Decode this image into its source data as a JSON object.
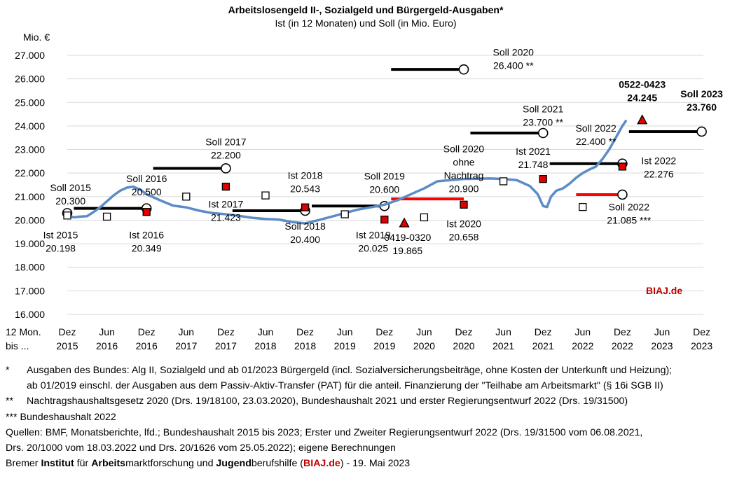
{
  "chart_data": {
    "type": "line",
    "title": "Arbeitslosengeld II-, Sozialgeld und Bürgergeld-Ausgaben*",
    "subtitle": "Ist (in 12 Monaten) und Soll (in Mio. Euro)",
    "y_unit_label": "Mio. €",
    "ylim": [
      16000,
      27000
    ],
    "y_ticks": [
      "16.000",
      "17.000",
      "18.000",
      "19.000",
      "20.000",
      "21.000",
      "22.000",
      "23.000",
      "24.000",
      "25.000",
      "26.000",
      "27.000"
    ],
    "x_axis_prefix": [
      "12 Mon.",
      "bis ..."
    ],
    "x_ticks": [
      {
        "m": "Dez",
        "y": "2015"
      },
      {
        "m": "Jun",
        "y": "2016"
      },
      {
        "m": "Dez",
        "y": "2016"
      },
      {
        "m": "Jun",
        "y": "2017"
      },
      {
        "m": "Dez",
        "y": "2017"
      },
      {
        "m": "Jun",
        "y": "2018"
      },
      {
        "m": "Dez",
        "y": "2018"
      },
      {
        "m": "Jun",
        "y": "2019"
      },
      {
        "m": "Dez",
        "y": "2019"
      },
      {
        "m": "Jun",
        "y": "2020"
      },
      {
        "m": "Dez",
        "y": "2020"
      },
      {
        "m": "Jun",
        "y": "2021"
      },
      {
        "m": "Dez",
        "y": "2021"
      },
      {
        "m": "Jun",
        "y": "2022"
      },
      {
        "m": "Dez",
        "y": "2022"
      },
      {
        "m": "Jun",
        "y": "2023"
      },
      {
        "m": "Dez",
        "y": "2023"
      }
    ],
    "ist_series": {
      "name": "Ist (12 Monate)",
      "color": "#5b8cc8",
      "points": [
        [
          0,
          20198
        ],
        [
          0.5,
          20120
        ],
        [
          1,
          20150
        ],
        [
          1.5,
          20170
        ],
        [
          2,
          20349
        ],
        [
          2.5,
          20550
        ],
        [
          3,
          20800
        ],
        [
          3.5,
          21050
        ],
        [
          4,
          21250
        ],
        [
          4.5,
          21380
        ],
        [
          5,
          21423
        ],
        [
          5.5,
          21300
        ],
        [
          6,
          21100
        ],
        [
          7,
          20850
        ],
        [
          8,
          20620
        ],
        [
          9,
          20543
        ],
        [
          10,
          20400
        ],
        [
          11,
          20300
        ],
        [
          12,
          20250
        ],
        [
          13,
          20180
        ],
        [
          14,
          20100
        ],
        [
          15,
          20050
        ],
        [
          16,
          20025
        ],
        [
          17,
          19920
        ],
        [
          18,
          19865
        ],
        [
          19,
          20000
        ],
        [
          20,
          20150
        ],
        [
          21,
          20300
        ],
        [
          22,
          20450
        ],
        [
          23,
          20550
        ],
        [
          24,
          20658
        ],
        [
          25,
          20850
        ],
        [
          26,
          21100
        ],
        [
          27,
          21350
        ],
        [
          28,
          21650
        ],
        [
          29,
          21700
        ],
        [
          30,
          21750
        ],
        [
          31,
          21760
        ],
        [
          32,
          21770
        ],
        [
          33,
          21748
        ],
        [
          34,
          21700
        ],
        [
          35,
          21450
        ],
        [
          35.6,
          21100
        ],
        [
          36,
          20600
        ],
        [
          36.3,
          20560
        ],
        [
          36.6,
          21000
        ],
        [
          37,
          21250
        ],
        [
          37.5,
          21350
        ],
        [
          38,
          21550
        ],
        [
          38.5,
          21800
        ],
        [
          39,
          22000
        ],
        [
          39.5,
          22150
        ],
        [
          40,
          22276
        ],
        [
          40.5,
          22600
        ],
        [
          41,
          23000
        ],
        [
          41.5,
          23500
        ],
        [
          42,
          24000
        ],
        [
          42.3,
          24245
        ]
      ]
    },
    "ist_markers": [
      {
        "m": 0,
        "v": 20198,
        "style": "open-square"
      },
      {
        "m": 6,
        "v": 20150,
        "style": "open-square"
      },
      {
        "m": 12,
        "v": 20349,
        "style": "red-square"
      },
      {
        "m": 18,
        "v": 21000,
        "style": "open-square"
      },
      {
        "m": 24,
        "v": 21423,
        "style": "red-square"
      },
      {
        "m": 30,
        "v": 21050,
        "style": "open-square"
      },
      {
        "m": 36,
        "v": 20543,
        "style": "red-square"
      },
      {
        "m": 42,
        "v": 20250,
        "style": "open-square"
      },
      {
        "m": 48,
        "v": 20025,
        "style": "red-square"
      },
      {
        "m": 51,
        "v": 19865,
        "style": "red-triangle"
      },
      {
        "m": 54,
        "v": 20120,
        "style": "open-square"
      },
      {
        "m": 60,
        "v": 20658,
        "style": "red-square"
      },
      {
        "m": 66,
        "v": 21650,
        "style": "open-square"
      },
      {
        "m": 72,
        "v": 21748,
        "style": "red-square"
      },
      {
        "m": 78,
        "v": 20560,
        "style": "open-square"
      },
      {
        "m": 84,
        "v": 22276,
        "style": "red-square"
      },
      {
        "m": 87,
        "v": 24245,
        "style": "red-triangle"
      }
    ],
    "soll_lines": [
      {
        "name": "Soll 2015",
        "value": 20300,
        "from_m": 0,
        "to_m": 0,
        "color": "#000000"
      },
      {
        "name": "Soll 2016",
        "value": 20500,
        "from_m": 1,
        "to_m": 12,
        "color": "#000000"
      },
      {
        "name": "Soll 2017",
        "value": 22200,
        "from_m": 13,
        "to_m": 24,
        "color": "#000000"
      },
      {
        "name": "Soll 2018",
        "value": 20400,
        "from_m": 25,
        "to_m": 36,
        "color": "#000000"
      },
      {
        "name": "Soll 2019",
        "value": 20600,
        "from_m": 37,
        "to_m": 48,
        "color": "#000000"
      },
      {
        "name": "Soll 2020 ohne Nachtrag",
        "value": 20900,
        "from_m": 49,
        "to_m": 60,
        "color": "#ff0000"
      },
      {
        "name": "Soll 2020 **",
        "value": 26400,
        "from_m": 49,
        "to_m": 60,
        "color": "#000000"
      },
      {
        "name": "Soll 2021 **",
        "value": 23700,
        "from_m": 61,
        "to_m": 72,
        "color": "#000000"
      },
      {
        "name": "Soll 2022 **",
        "value": 22400,
        "from_m": 73,
        "to_m": 84,
        "color": "#000000"
      },
      {
        "name": "Soll 2022 ***",
        "value": 21085,
        "from_m": 77,
        "to_m": 84,
        "color": "#ff0000"
      },
      {
        "name": "Soll 2023",
        "value": 23760,
        "from_m": 85,
        "to_m": 96,
        "color": "#000000"
      }
    ],
    "annotations": [
      {
        "lines": [
          "Soll 2015",
          "20.300"
        ],
        "m": 0.5,
        "v": 21230,
        "bold": false
      },
      {
        "lines": [
          "Ist 2015",
          "20.198"
        ],
        "m": -1,
        "v": 19220,
        "bold": false
      },
      {
        "lines": [
          "Soll 2016",
          "20.500"
        ],
        "m": 12,
        "v": 21620,
        "bold": false
      },
      {
        "lines": [
          "Ist 2016",
          "20.349"
        ],
        "m": 12,
        "v": 19220,
        "bold": false
      },
      {
        "lines": [
          "Soll 2017",
          "22.200"
        ],
        "m": 24,
        "v": 23180,
        "bold": false
      },
      {
        "lines": [
          "Ist 2017",
          "21.423"
        ],
        "m": 24,
        "v": 20530,
        "bold": false
      },
      {
        "lines": [
          "Ist 2018",
          "20.543"
        ],
        "m": 36,
        "v": 21750,
        "bold": false
      },
      {
        "lines": [
          "Soll 2018",
          "20.400"
        ],
        "m": 36,
        "v": 19600,
        "bold": false
      },
      {
        "lines": [
          "Soll 2019",
          "20.600"
        ],
        "m": 48,
        "v": 21720,
        "bold": false
      },
      {
        "lines": [
          "Ist 2019",
          "20.025"
        ],
        "m": 46.3,
        "v": 19220,
        "bold": false
      },
      {
        "lines": [
          "0419-0320",
          "19.865"
        ],
        "m": 51.5,
        "v": 19120,
        "bold": false
      },
      {
        "lines": [
          "Soll 2020",
          "ohne",
          "Nachtrag",
          "20.900"
        ],
        "m": 60,
        "v": 22880,
        "bold": false
      },
      {
        "lines": [
          "Ist 2020",
          "20.658"
        ],
        "m": 60,
        "v": 19700,
        "bold": false
      },
      {
        "lines": [
          "Soll 2020",
          "26.400 **"
        ],
        "m": 67.5,
        "v": 26980,
        "bold": false
      },
      {
        "lines": [
          "Soll 2021",
          "23.700 **"
        ],
        "m": 72,
        "v": 24580,
        "bold": false
      },
      {
        "lines": [
          "Ist 2021",
          "21.748"
        ],
        "m": 70.5,
        "v": 22780,
        "bold": false
      },
      {
        "lines": [
          "0522-0423",
          "24.245"
        ],
        "m": 87,
        "v": 25620,
        "bold": true
      },
      {
        "lines": [
          "Soll 2023",
          "23.760"
        ],
        "m": 96,
        "v": 25220,
        "bold": true
      },
      {
        "lines": [
          "Soll 2022",
          "22.400 **"
        ],
        "m": 80,
        "v": 23760,
        "bold": false
      },
      {
        "lines": [
          "Ist 2022",
          "22.276"
        ],
        "m": 89.5,
        "v": 22380,
        "bold": false
      },
      {
        "lines": [
          "Soll 2022",
          "21.085 ***"
        ],
        "m": 85,
        "v": 20420,
        "bold": false
      }
    ],
    "watermark": "BIAJ.de",
    "grid": true
  },
  "footnotes": {
    "note1_mark": "*",
    "note1_line1": "Ausgaben des Bundes: Alg II, Sozialgeld und ab 01/2023 Bürgergeld (incl. Sozialversicherungsbeiträge, ohne Kosten der Unterkunft und Heizung);",
    "note1_line2": "ab 01/2019 einschl. der Ausgaben aus dem Passiv-Aktiv-Transfer (PAT) für die anteil. Finanzierung der \"Teilhabe am Arbeitsmarkt\" (§ 16i SGB II)",
    "note2_mark": "**",
    "note2": "Nachtragshaushaltsgesetz 2020 (Drs. 19/18100, 23.03.2020), Bundeshaushalt 2021 und erster Regierungsentwurf 2022 (Drs. 19/31500)",
    "note3_mark": "***",
    "note3": "Bundeshaushalt 2022",
    "sources_line1": "Quellen: BMF, Monatsberichte, lfd.; Bundeshaushalt 2015 bis 2023; Erster und Zweiter Regierungsentwurf 2022 (Drs. 19/31500 vom 06.08.2021,",
    "sources_line2": "Drs. 20/1000 vom 18.03.2022 und Drs. 20/1626 vom 25.05.2022); eigene Berechnungen",
    "credit": {
      "p1": "Bremer ",
      "b1": "Institut",
      "p2": " für ",
      "b2": "Arbeits",
      "p3": "marktforschung und ",
      "b3": "Jugend",
      "p4": "berufshilfe (",
      "link": "BIAJ.de",
      "p5": ") - 19. Mai 2023"
    }
  },
  "colors": {
    "ist_line": "#5b8cc8",
    "soll_black": "#000000",
    "soll_red": "#ff0000",
    "marker_red": "#e00000",
    "watermark": "#c00000",
    "grid": "#d9d9d9"
  }
}
